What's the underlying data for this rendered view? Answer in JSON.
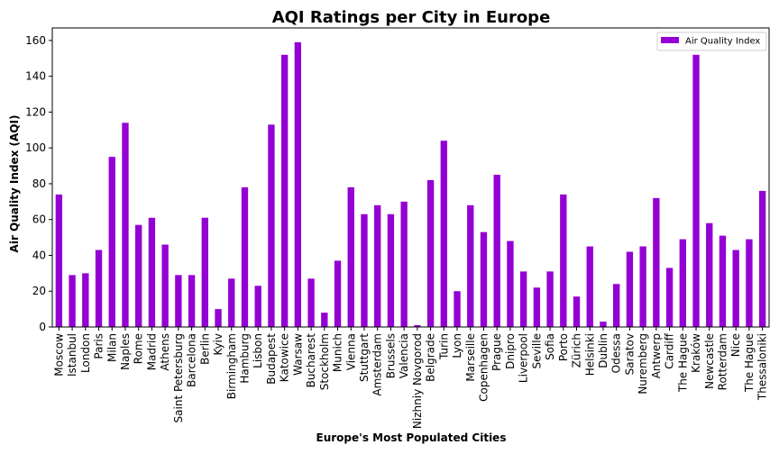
{
  "colors": {
    "bar": "#9400D3",
    "axis": "#000000",
    "legend_border": "#cccccc"
  },
  "chart_data": {
    "type": "bar",
    "title": "AQI Ratings per City in Europe",
    "xlabel": "Europe's Most Populated Cities",
    "ylabel": "Air Quality Index (AQI)",
    "ylim": [
      0,
      167
    ],
    "yticks": [
      0,
      20,
      40,
      60,
      80,
      100,
      120,
      140,
      160
    ],
    "grid": false,
    "legend_position": "top-right",
    "categories": [
      "Moscow",
      "Istanbul",
      "London",
      "Paris",
      "Milan",
      "Naples",
      "Rome",
      "Madrid",
      "Athens",
      "Saint Petersburg",
      "Barcelona",
      "Berlin",
      "Kyiv",
      "Birmingham",
      "Hamburg",
      "Lisbon",
      "Budapest",
      "Katowice",
      "Warsaw",
      "Bucharest",
      "Stockholm",
      "Munich",
      "Vienna",
      "Stuttgart",
      "Amsterdam",
      "Brussels",
      "Valencia",
      "Nizhniy Novgorod",
      "Belgrade",
      "Turin",
      "Lyon",
      "Marseille",
      "Copenhagen",
      "Prague",
      "Dnipro",
      "Liverpool",
      "Seville",
      "Sofia",
      "Porto",
      "Zürich",
      "Helsinki",
      "Dublin",
      "Odessa",
      "Saratov",
      "Nuremberg",
      "Antwerp",
      "Cardiff",
      "The Hague",
      "Kraków",
      "Newcastle",
      "Rotterdam",
      "Nice",
      "The Hague",
      "Thessaloniki"
    ],
    "series": [
      {
        "name": "Air Quality Index",
        "values": [
          74,
          29,
          30,
          43,
          95,
          114,
          57,
          61,
          46,
          29,
          29,
          61,
          10,
          27,
          78,
          23,
          113,
          152,
          159,
          27,
          8,
          37,
          78,
          63,
          68,
          63,
          70,
          1,
          82,
          104,
          20,
          68,
          53,
          85,
          48,
          31,
          22,
          31,
          74,
          17,
          45,
          3,
          24,
          42,
          45,
          72,
          33,
          49,
          152,
          58,
          51,
          43,
          49,
          76
        ]
      }
    ]
  }
}
